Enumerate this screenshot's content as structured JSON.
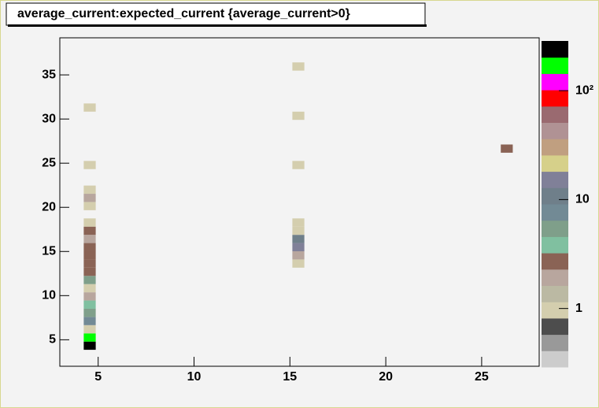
{
  "chart_data": {
    "type": "heatmap",
    "title": "average_current:expected_current {average_current>0}",
    "x": [
      4.56,
      4.56,
      4.56,
      4.56,
      4.56,
      4.56,
      4.56,
      4.56,
      4.56,
      4.56,
      4.56,
      4.56,
      4.56,
      4.56,
      4.56,
      4.56,
      4.56,
      4.56,
      4.56,
      4.56,
      4.56,
      15.44,
      15.44,
      15.44,
      15.44,
      15.44,
      15.44,
      15.44,
      15.44,
      15.44,
      26.31
    ],
    "y": [
      4.33,
      5.26,
      6.19,
      7.12,
      8.05,
      8.98,
      9.91,
      10.84,
      11.77,
      12.7,
      13.63,
      14.56,
      15.49,
      16.42,
      17.35,
      18.28,
      20.14,
      21.07,
      22.0,
      24.79,
      31.3,
      13.63,
      14.56,
      15.49,
      16.42,
      17.35,
      18.28,
      24.79,
      30.37,
      35.95,
      26.65
    ],
    "values": [
      250,
      180,
      1,
      7,
      5,
      4,
      2,
      1,
      5,
      3,
      3,
      3,
      3,
      2,
      3,
      1,
      1,
      2,
      1,
      1,
      1,
      1,
      2,
      14,
      10,
      1,
      1,
      1,
      1,
      1,
      3
    ],
    "xlim": [
      3,
      28
    ],
    "xticks": [
      5,
      10,
      15,
      20,
      25
    ],
    "ylim": [
      2,
      39.2
    ],
    "yticks": [
      5,
      10,
      15,
      20,
      25,
      30,
      35
    ],
    "zlim": [
      0.29,
      286
    ],
    "zticks": [
      1,
      10,
      {
        "value": 100,
        "label": "10²"
      }
    ],
    "zlog": true,
    "palette": [
      "#cccccc",
      "#999999",
      "#4d4d4d",
      "#d4ceae",
      "#bbb9a3",
      "#b8a69e",
      "#8a6355",
      "#80c0a0",
      "#7f9f8a",
      "#728a95",
      "#6f7f8a",
      "#808098",
      "#d6d08a",
      "#c09f80",
      "#b09294",
      "#9a6a70",
      "#ff0000",
      "#ff00ff",
      "#00ff00",
      "#000000"
    ]
  }
}
